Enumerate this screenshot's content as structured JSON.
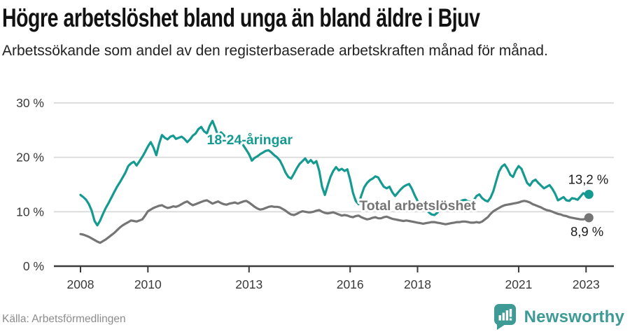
{
  "header": {
    "title": "Högre arbetslöshet bland unga än bland äldre i Bjuv",
    "subtitle": "Arbetssökande som andel av den registerbaserade arbetskraften månad för månad."
  },
  "footer": {
    "source": "Källa: Arbetsförmedlingen",
    "brand": "Newsworthy"
  },
  "colors": {
    "youth_line": "#159a91",
    "total_line": "#757575",
    "grid": "#d9d9d9",
    "axis": "#3a3a3a",
    "text": "#1a1a1a",
    "muted_text": "#8c8c8c",
    "brand": "#3d9a94"
  },
  "chart_data": {
    "type": "line",
    "title": "Högre arbetslöshet bland unga än bland äldre i Bjuv",
    "subtitle": "Arbetssökande som andel av den registerbaserade arbetskraften månad för månad.",
    "x_unit": "year, monthly samples Jan 2008 – Feb 2023",
    "y_unit": "percent",
    "ylim": [
      0,
      30
    ],
    "yticks": [
      0,
      10,
      20,
      30
    ],
    "ytick_labels": [
      "0 %",
      "10 %",
      "20 %",
      "30 %"
    ],
    "xticks": [
      2008,
      2010,
      2013,
      2016,
      2018,
      2021,
      2023
    ],
    "grid": true,
    "legend": "inline labels on lines",
    "series": [
      {
        "id": "youth",
        "name": "18-24-åringar",
        "color": "#159a91",
        "end_label": "13,2 %",
        "last_value": 13.2,
        "label_at": [
          2013.02,
          22.4
        ],
        "end_label_offset": [
          28,
          -15
        ],
        "x_start": 2008.0,
        "x_step": 0.0833333,
        "values": [
          13.1,
          12.7,
          12.2,
          11.4,
          10.2,
          8.3,
          7.5,
          8.4,
          9.6,
          10.7,
          11.6,
          12.6,
          13.6,
          14.6,
          15.4,
          16.3,
          17.2,
          18.4,
          18.9,
          19.2,
          18.5,
          19.3,
          20.1,
          21.0,
          22.0,
          22.8,
          21.8,
          20.4,
          22.5,
          24.1,
          23.6,
          23.3,
          23.8,
          24.0,
          23.4,
          23.6,
          23.8,
          23.4,
          22.8,
          23.3,
          24.0,
          24.4,
          25.2,
          25.6,
          24.8,
          24.4,
          25.8,
          26.7,
          25.4,
          23.9,
          24.6,
          24.1,
          23.6,
          23.9,
          24.2,
          23.8,
          23.4,
          22.9,
          22.2,
          21.4,
          20.6,
          19.4,
          19.9,
          20.2,
          20.6,
          20.9,
          21.2,
          21.3,
          20.9,
          20.4,
          20.0,
          19.4,
          18.4,
          17.2,
          16.4,
          16.1,
          17.0,
          18.0,
          18.8,
          19.3,
          19.8,
          19.0,
          19.5,
          18.9,
          19.3,
          17.5,
          14.6,
          13.1,
          14.8,
          16.4,
          17.5,
          18.2,
          17.6,
          17.9,
          17.5,
          17.8,
          15.9,
          13.5,
          12.0,
          11.4,
          13.0,
          14.5,
          15.3,
          15.8,
          16.1,
          16.5,
          16.3,
          15.4,
          14.6,
          14.3,
          14.6,
          13.6,
          12.9,
          13.5,
          14.1,
          14.6,
          14.9,
          15.1,
          14.2,
          13.0,
          12.0,
          11.4,
          11.0,
          10.4,
          9.9,
          9.5,
          9.4,
          9.8,
          10.4,
          11.0,
          11.4,
          11.6,
          11.4,
          11.2,
          11.6,
          11.9,
          12.1,
          12.2,
          11.9,
          11.8,
          12.1,
          12.9,
          13.2,
          12.5,
          12.1,
          11.9,
          12.6,
          13.8,
          15.6,
          17.4,
          18.3,
          18.7,
          17.9,
          16.8,
          16.4,
          17.6,
          18.4,
          17.9,
          16.6,
          15.3,
          14.8,
          15.6,
          15.9,
          15.3,
          14.8,
          14.3,
          14.6,
          14.9,
          14.2,
          13.3,
          12.1,
          12.4,
          12.7,
          12.1,
          12.0,
          12.5,
          12.4,
          12.2,
          12.8,
          13.4,
          13.1,
          13.2
        ]
      },
      {
        "id": "total",
        "name": "Total arbetslöshet",
        "color": "#757575",
        "end_label": "8,9 %",
        "last_value": 8.9,
        "label_at": [
          2018.0,
          10.3
        ],
        "end_label_offset": [
          21,
          26
        ],
        "x_start": 2008.0,
        "x_step": 0.0833333,
        "values": [
          5.9,
          5.8,
          5.6,
          5.4,
          5.1,
          4.8,
          4.5,
          4.3,
          4.6,
          4.9,
          5.3,
          5.7,
          6.1,
          6.6,
          7.1,
          7.5,
          7.8,
          8.1,
          8.4,
          8.3,
          8.2,
          8.4,
          8.6,
          9.3,
          10.1,
          10.4,
          10.7,
          10.9,
          11.1,
          11.2,
          10.9,
          10.7,
          10.8,
          11.0,
          10.9,
          11.1,
          11.4,
          11.7,
          11.9,
          11.5,
          11.2,
          11.4,
          11.6,
          11.8,
          12.0,
          12.1,
          11.8,
          11.5,
          11.7,
          11.9,
          11.6,
          11.4,
          11.3,
          11.5,
          11.6,
          11.7,
          11.5,
          11.7,
          11.9,
          12.0,
          11.7,
          11.3,
          10.9,
          10.6,
          10.4,
          10.5,
          10.7,
          10.9,
          11.0,
          10.9,
          10.9,
          10.8,
          10.5,
          10.2,
          9.8,
          9.5,
          9.4,
          9.6,
          9.9,
          10.1,
          10.0,
          9.9,
          9.9,
          10.0,
          10.2,
          10.3,
          10.0,
          9.8,
          9.7,
          9.8,
          9.9,
          9.7,
          9.5,
          9.3,
          9.4,
          9.3,
          9.1,
          9.0,
          9.2,
          9.3,
          9.0,
          8.8,
          8.6,
          8.7,
          8.9,
          9.0,
          8.8,
          8.8,
          9.0,
          9.1,
          8.9,
          8.7,
          8.6,
          8.5,
          8.4,
          8.3,
          8.4,
          8.3,
          8.2,
          8.1,
          8.0,
          7.9,
          7.8,
          7.9,
          8.0,
          8.1,
          8.1,
          8.0,
          7.9,
          7.8,
          7.7,
          7.8,
          7.9,
          8.0,
          8.1,
          8.1,
          8.2,
          8.2,
          8.1,
          8.0,
          8.0,
          8.1,
          8.0,
          8.2,
          8.6,
          9.0,
          9.6,
          10.1,
          10.4,
          10.7,
          11.0,
          11.2,
          11.3,
          11.4,
          11.5,
          11.6,
          11.7,
          11.9,
          12.0,
          11.9,
          11.7,
          11.4,
          11.2,
          11.0,
          10.8,
          10.5,
          10.3,
          10.2,
          10.0,
          9.8,
          9.6,
          9.5,
          9.3,
          9.2,
          9.0,
          8.9,
          8.8,
          8.7,
          8.6,
          8.6,
          8.7,
          8.9
        ]
      }
    ]
  }
}
